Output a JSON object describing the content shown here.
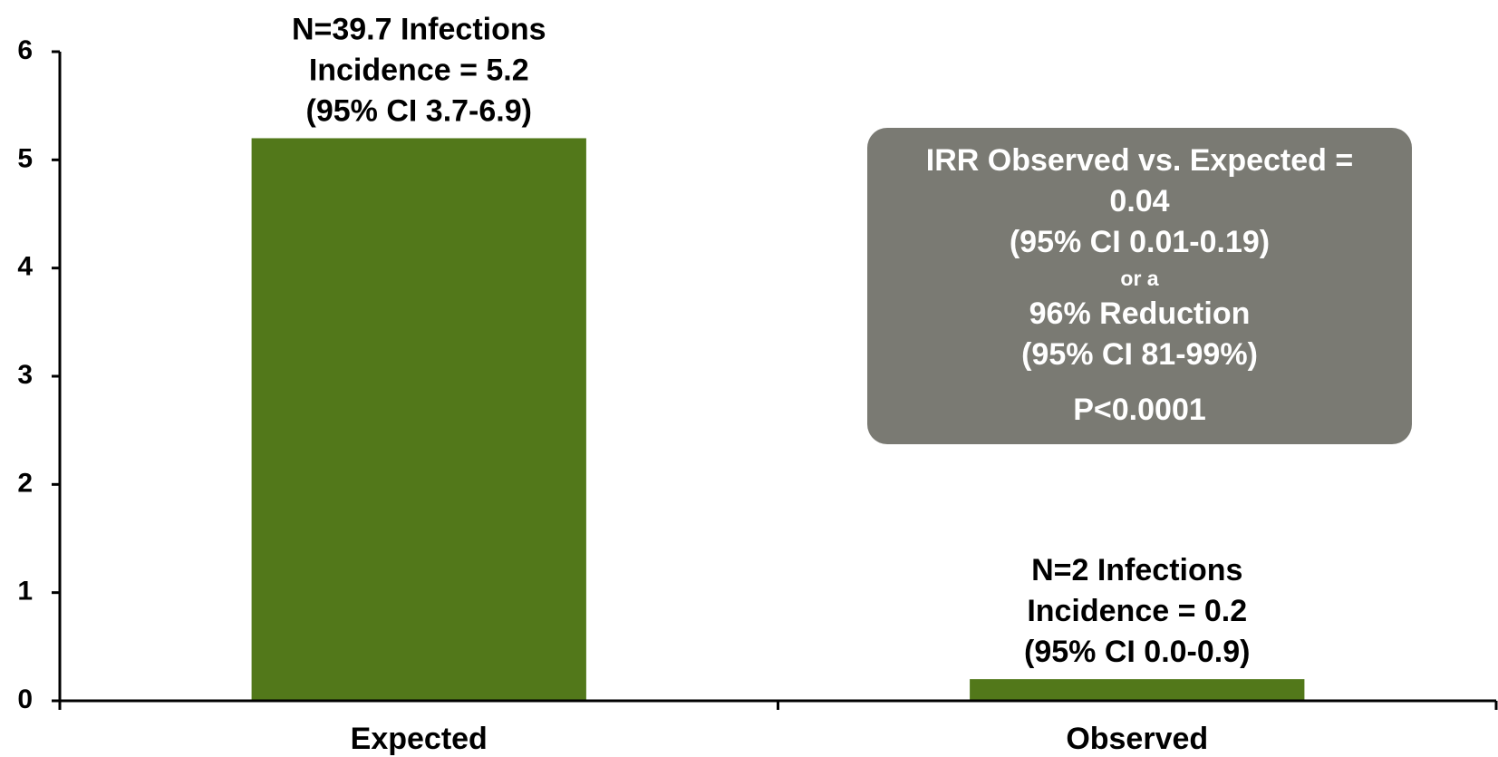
{
  "chart_data": {
    "type": "bar",
    "categories": [
      "Expected",
      "Observed"
    ],
    "values": [
      5.2,
      0.2
    ],
    "color": "#52781a",
    "ylim": [
      0,
      6
    ],
    "yticks": [
      0,
      1,
      2,
      3,
      4,
      5,
      6
    ],
    "bar_annotations": [
      [
        "N=39.7 Infections",
        "Incidence = 5.2",
        "(95% CI 3.7-6.9)"
      ],
      [
        "N=2 Infections",
        "Incidence = 0.2",
        "(95% CI 0.0-0.9)"
      ]
    ],
    "summary_box": [
      "IRR Observed vs. Expected =",
      "0.04",
      "(95% CI 0.01-0.19)",
      "or a",
      "96% Reduction",
      "(95% CI 81-99%)",
      "P<0.0001"
    ],
    "summary_box_color": "#7a7a73"
  }
}
